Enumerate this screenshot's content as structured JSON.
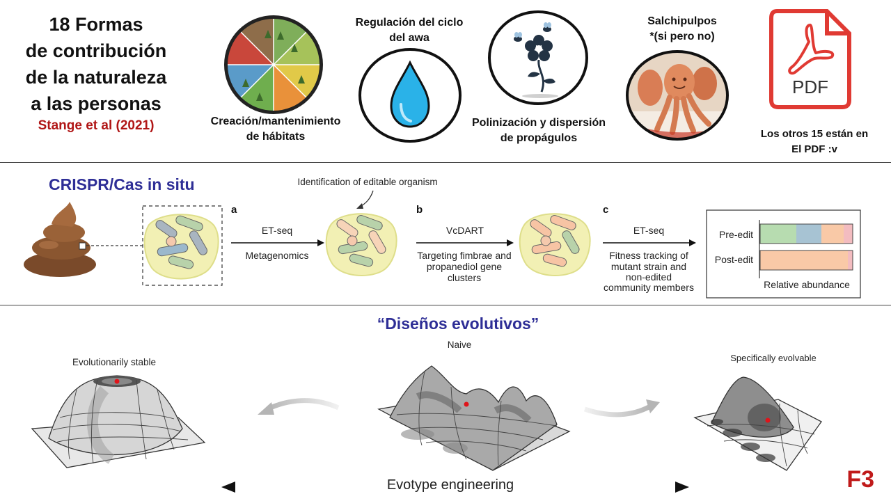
{
  "header": {
    "title_lines": [
      "18 Formas",
      "de contribución",
      "de la naturaleza",
      "a las personas"
    ],
    "citation": "Stange et al (2021)"
  },
  "contributions": [
    {
      "label_lines": [
        "Creación/mantenimiento",
        "de hábitats"
      ],
      "icon": "habitat-wheel-icon"
    },
    {
      "label_lines": [
        "Regulación del ciclo",
        "del awa"
      ],
      "icon": "water-drop-icon"
    },
    {
      "label_lines": [
        "Polinización y dispersión",
        "de propágulos"
      ],
      "icon": "flower-bees-icon"
    },
    {
      "label_lines": [
        "Salchipulpos",
        "*(si pero no)"
      ],
      "icon": "sausage-octopus-photo"
    }
  ],
  "pdf": {
    "icon_text": "PDF",
    "label_lines": [
      "Los otros 15 están en",
      "El PDF :v"
    ]
  },
  "crispr": {
    "title": "CRISPR/Cas in situ",
    "annotation": "Identification of editable organism",
    "steps": [
      {
        "letter": "a",
        "top": "ET-seq",
        "bottom_lines": [
          "Metagenomics"
        ]
      },
      {
        "letter": "b",
        "top": "VcDART",
        "bottom_lines": [
          "Targeting fimbrae and",
          "propanediol gene",
          "clusters"
        ]
      },
      {
        "letter": "c",
        "top": "ET-seq",
        "bottom_lines": [
          "Fitness tracking of",
          "mutant strain and",
          "non-edited",
          "community members"
        ]
      }
    ],
    "chart": {
      "rows": [
        "Pre-edit",
        "Post-edit"
      ],
      "xlabel": "Relative abundance",
      "colors": [
        "#b7dcb0",
        "#a7c3d3",
        "#f9c9a7",
        "#f3bcc0"
      ]
    }
  },
  "evo": {
    "title": "“Diseños evolutivos”",
    "left_label": "Evolutionarily stable",
    "center_label": "Naive",
    "right_label": "Specifically evolvable",
    "axis_label": "Evotype engineering"
  },
  "slide_tag": "F3"
}
